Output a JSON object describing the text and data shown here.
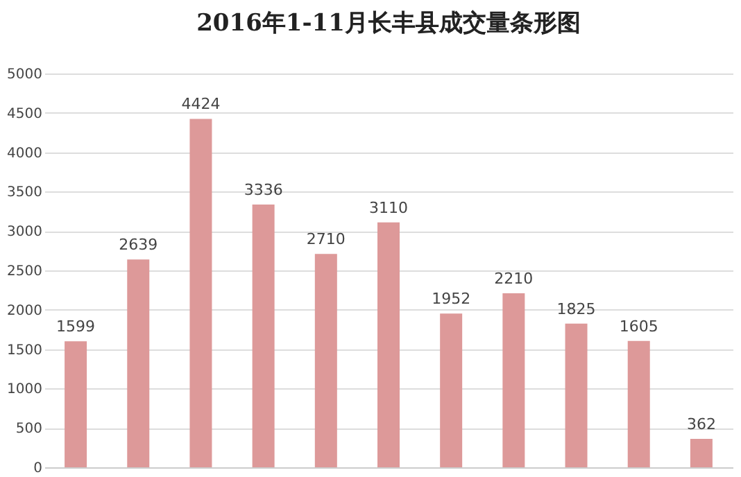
{
  "chart_data": {
    "type": "bar",
    "title": "2016年1-11月长丰县成交量条形图",
    "categories": [
      null,
      null,
      null,
      null,
      null,
      null,
      null,
      null,
      null,
      null,
      null
    ],
    "values": [
      1599,
      2639,
      4424,
      3336,
      2710,
      3110,
      1952,
      2210,
      1825,
      1605,
      362
    ],
    "color": "#dd9999",
    "ylim": [
      0,
      5000
    ],
    "yticks": [
      0,
      500,
      1000,
      1500,
      2000,
      2500,
      3000,
      3500,
      4000,
      4500,
      5000
    ],
    "grid": "y",
    "data_labels": true
  }
}
